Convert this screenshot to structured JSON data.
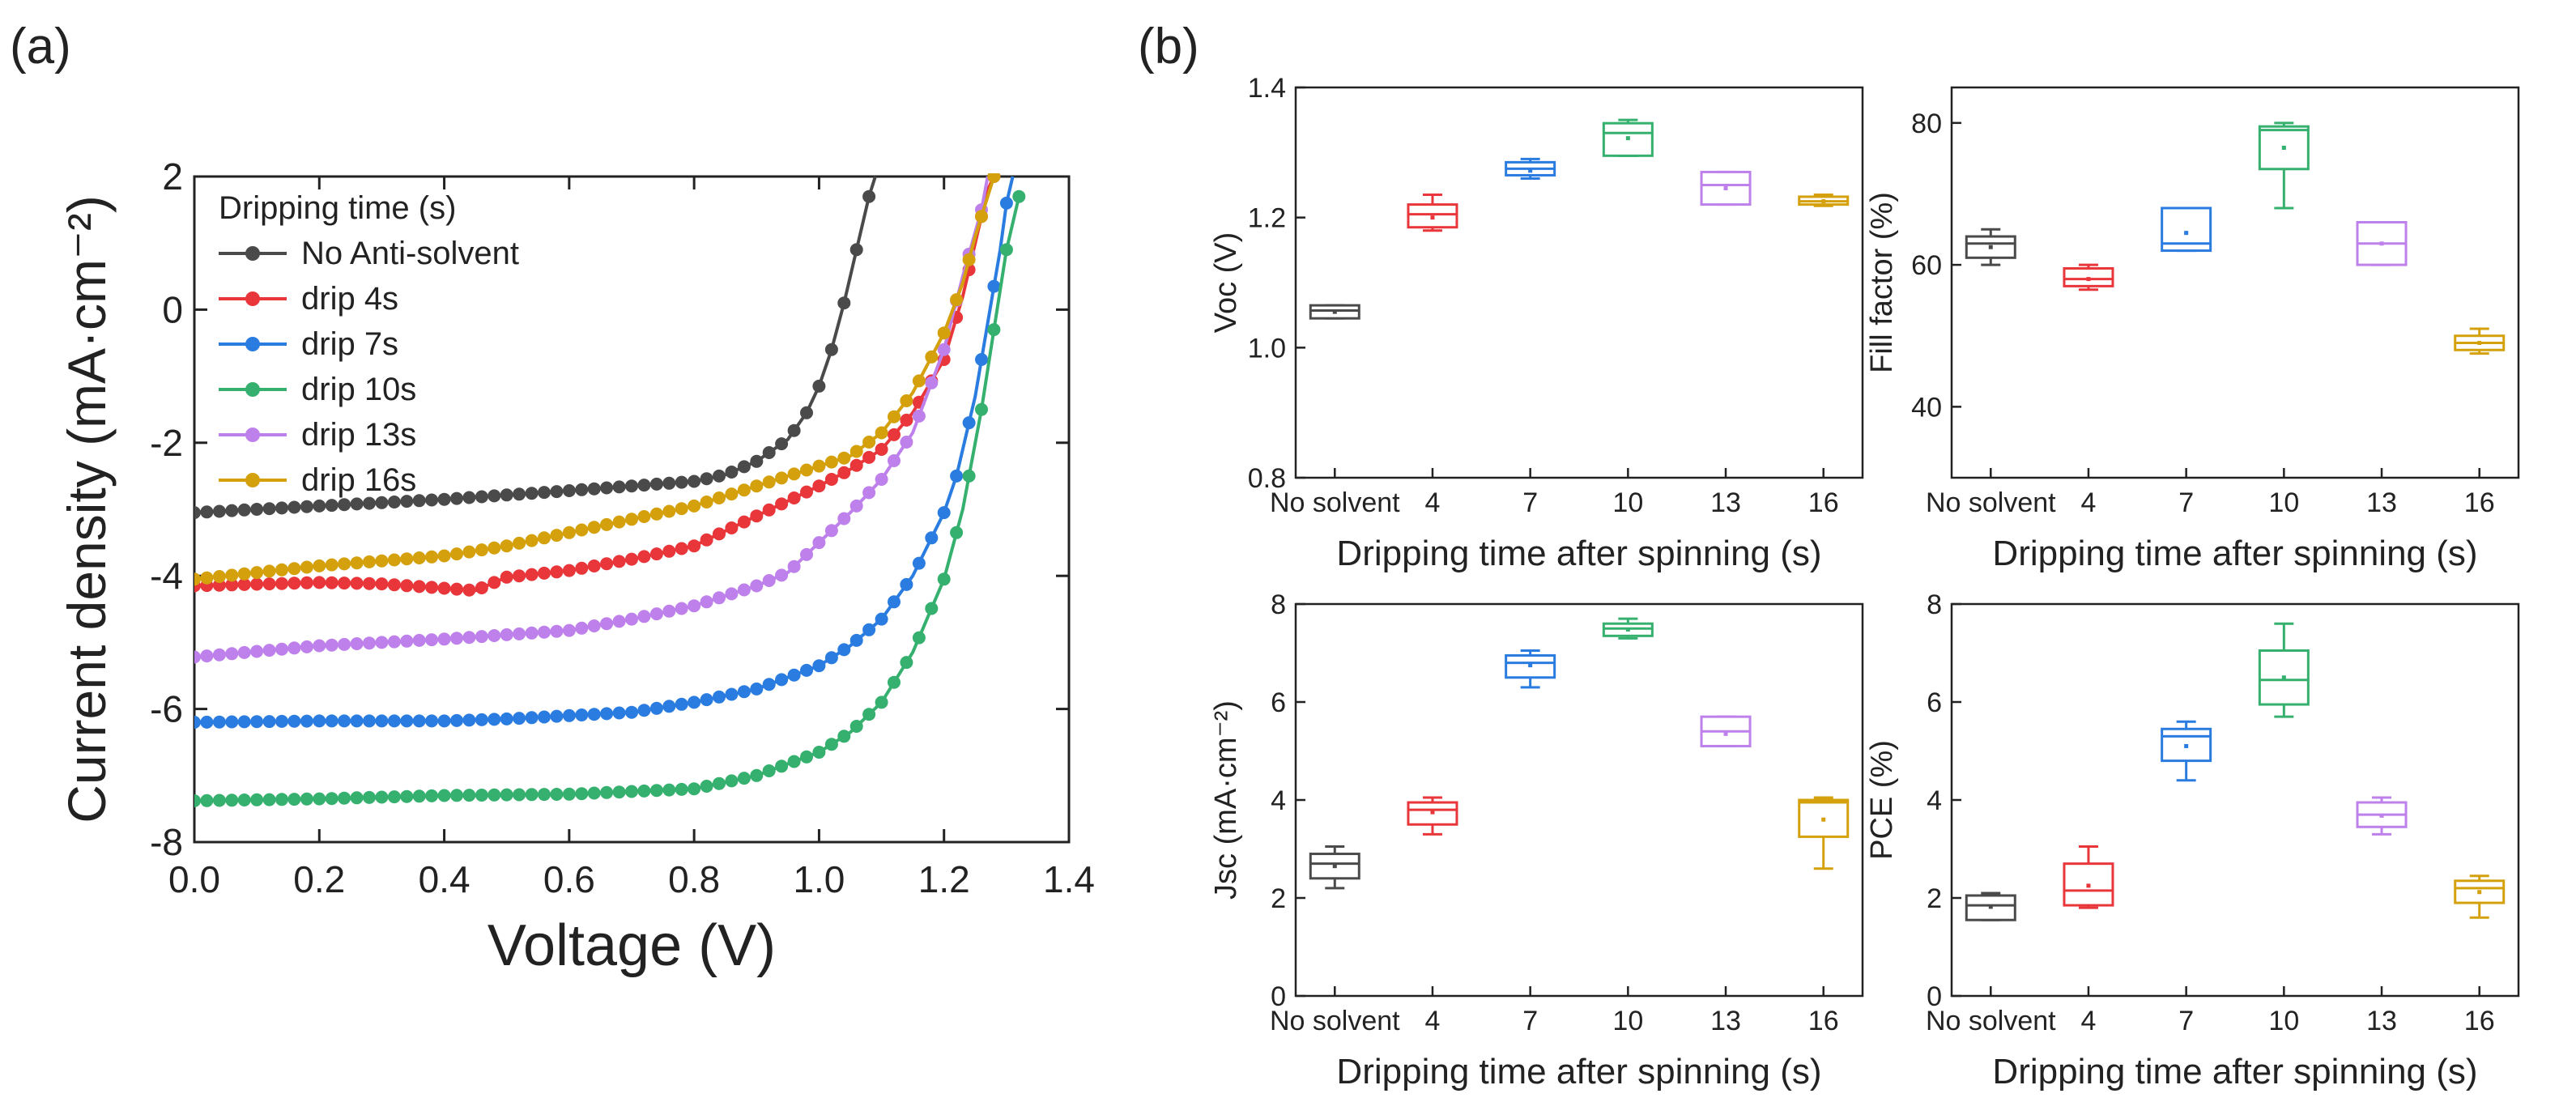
{
  "panel_labels": [
    "(a)",
    "(b)"
  ],
  "colors": {
    "black": "#4a4a4a",
    "red": "#e8363a",
    "blue": "#2a7ce0",
    "green": "#35b06e",
    "purple": "#be80ea",
    "gold": "#d4a00c"
  },
  "chart_data": [
    {
      "id": "jv",
      "type": "line",
      "panel": "(a)",
      "title": "",
      "xlabel": "Voltage (V)",
      "ylabel": "Current density (mA·cm⁻²)",
      "xlim": [
        0.0,
        1.4
      ],
      "ylim": [
        -8,
        2
      ],
      "xticks": [
        0.0,
        0.2,
        0.4,
        0.6,
        0.8,
        1.0,
        1.2,
        1.4
      ],
      "xtick_labels": [
        "0.0",
        "0.2",
        "0.4",
        "0.6",
        "0.8",
        "1.0",
        "1.2",
        "1.4"
      ],
      "yticks": [
        -8,
        -6,
        -4,
        -2,
        0,
        2
      ],
      "ytick_labels": [
        "-8",
        "-6",
        "-4",
        "-2",
        "0",
        "2"
      ],
      "legend_title": "Dripping time (s)",
      "legend_position": "top-left",
      "series": [
        {
          "name": "No Anti-solvent",
          "color": "black",
          "points": [
            [
              0.0,
              -3.05
            ],
            [
              0.2,
              -2.95
            ],
            [
              0.4,
              -2.85
            ],
            [
              0.6,
              -2.72
            ],
            [
              0.8,
              -2.58
            ],
            [
              0.85,
              -2.48
            ],
            [
              0.9,
              -2.28
            ],
            [
              0.95,
              -1.95
            ],
            [
              0.98,
              -1.55
            ],
            [
              1.0,
              -1.15
            ],
            [
              1.02,
              -0.6
            ],
            [
              1.04,
              0.1
            ],
            [
              1.06,
              0.9
            ],
            [
              1.08,
              1.7
            ],
            [
              1.09,
              2.0
            ]
          ]
        },
        {
          "name": "drip 4s",
          "color": "red",
          "points": [
            [
              0.0,
              -4.15
            ],
            [
              0.2,
              -4.1
            ],
            [
              0.3,
              -4.12
            ],
            [
              0.45,
              -4.22
            ],
            [
              0.5,
              -4.02
            ],
            [
              0.6,
              -3.92
            ],
            [
              0.7,
              -3.75
            ],
            [
              0.8,
              -3.55
            ],
            [
              0.9,
              -3.1
            ],
            [
              1.0,
              -2.65
            ],
            [
              1.05,
              -2.4
            ],
            [
              1.1,
              -2.1
            ],
            [
              1.15,
              -1.55
            ],
            [
              1.2,
              -0.75
            ],
            [
              1.23,
              0.2
            ],
            [
              1.25,
              1.0
            ],
            [
              1.27,
              1.8
            ],
            [
              1.28,
              2.0
            ]
          ]
        },
        {
          "name": "drip 7s",
          "color": "blue",
          "points": [
            [
              0.0,
              -6.2
            ],
            [
              0.2,
              -6.18
            ],
            [
              0.4,
              -6.18
            ],
            [
              0.5,
              -6.15
            ],
            [
              0.6,
              -6.1
            ],
            [
              0.7,
              -6.05
            ],
            [
              0.8,
              -5.9
            ],
            [
              0.9,
              -5.7
            ],
            [
              1.0,
              -5.35
            ],
            [
              1.05,
              -5.05
            ],
            [
              1.1,
              -4.65
            ],
            [
              1.15,
              -4.0
            ],
            [
              1.2,
              -3.05
            ],
            [
              1.22,
              -2.5
            ],
            [
              1.25,
              -1.3
            ],
            [
              1.27,
              -0.2
            ],
            [
              1.29,
              0.9
            ],
            [
              1.3,
              1.6
            ],
            [
              1.31,
              2.0
            ]
          ]
        },
        {
          "name": "drip 10s",
          "color": "green",
          "points": [
            [
              0.0,
              -7.38
            ],
            [
              0.2,
              -7.35
            ],
            [
              0.4,
              -7.3
            ],
            [
              0.6,
              -7.28
            ],
            [
              0.8,
              -7.2
            ],
            [
              0.9,
              -7.0
            ],
            [
              1.0,
              -6.65
            ],
            [
              1.05,
              -6.35
            ],
            [
              1.1,
              -5.9
            ],
            [
              1.15,
              -5.15
            ],
            [
              1.2,
              -4.05
            ],
            [
              1.23,
              -3.0
            ],
            [
              1.26,
              -1.5
            ],
            [
              1.28,
              -0.3
            ],
            [
              1.3,
              0.9
            ],
            [
              1.32,
              1.7
            ]
          ]
        },
        {
          "name": "drip 13s",
          "color": "purple",
          "points": [
            [
              0.0,
              -5.22
            ],
            [
              0.2,
              -5.05
            ],
            [
              0.4,
              -4.95
            ],
            [
              0.6,
              -4.82
            ],
            [
              0.7,
              -4.65
            ],
            [
              0.8,
              -4.45
            ],
            [
              0.9,
              -4.15
            ],
            [
              0.95,
              -3.95
            ],
            [
              1.0,
              -3.5
            ],
            [
              1.05,
              -3.05
            ],
            [
              1.1,
              -2.55
            ],
            [
              1.15,
              -1.85
            ],
            [
              1.2,
              -0.6
            ],
            [
              1.23,
              0.5
            ],
            [
              1.26,
              1.5
            ],
            [
              1.27,
              2.0
            ]
          ]
        },
        {
          "name": "drip 16s",
          "color": "gold",
          "points": [
            [
              0.0,
              -4.05
            ],
            [
              0.2,
              -3.85
            ],
            [
              0.4,
              -3.7
            ],
            [
              0.5,
              -3.55
            ],
            [
              0.6,
              -3.35
            ],
            [
              0.7,
              -3.15
            ],
            [
              0.8,
              -2.95
            ],
            [
              0.9,
              -2.65
            ],
            [
              1.0,
              -2.35
            ],
            [
              1.05,
              -2.2
            ],
            [
              1.1,
              -1.85
            ],
            [
              1.15,
              -1.25
            ],
            [
              1.2,
              -0.35
            ],
            [
              1.23,
              0.4
            ],
            [
              1.25,
              1.1
            ],
            [
              1.28,
              2.0
            ]
          ]
        }
      ]
    },
    {
      "id": "voc",
      "type": "box",
      "panel": "(b)",
      "xlabel": "Dripping time after spinning (s)",
      "ylabel": "Voc (V)",
      "categories": [
        "No solvent",
        "4",
        "7",
        "10",
        "13",
        "16"
      ],
      "ylim": [
        0.8,
        1.4
      ],
      "yticks": [
        0.8,
        1.0,
        1.2,
        1.4
      ],
      "ytick_labels": [
        "0.8",
        "1.0",
        "1.2",
        "1.4"
      ],
      "boxes": [
        {
          "q1": 1.045,
          "median": 1.057,
          "q3": 1.065,
          "min": 1.045,
          "max": 1.065,
          "mean": 1.055,
          "color": "black"
        },
        {
          "q1": 1.185,
          "median": 1.205,
          "q3": 1.22,
          "min": 1.18,
          "max": 1.235,
          "mean": 1.2,
          "color": "red"
        },
        {
          "q1": 1.265,
          "median": 1.275,
          "q3": 1.285,
          "min": 1.26,
          "max": 1.29,
          "mean": 1.272,
          "color": "blue"
        },
        {
          "q1": 1.295,
          "median": 1.33,
          "q3": 1.345,
          "min": 1.295,
          "max": 1.35,
          "mean": 1.322,
          "color": "green"
        },
        {
          "q1": 1.22,
          "median": 1.25,
          "q3": 1.27,
          "min": 1.22,
          "max": 1.27,
          "mean": 1.245,
          "color": "purple"
        },
        {
          "q1": 1.22,
          "median": 1.225,
          "q3": 1.232,
          "min": 1.218,
          "max": 1.235,
          "mean": 1.225,
          "color": "gold"
        }
      ]
    },
    {
      "id": "ff",
      "type": "box",
      "panel": "(b)",
      "xlabel": "Dripping time after spinning (s)",
      "ylabel": "Fill factor (%)",
      "categories": [
        "No solvent",
        "4",
        "7",
        "10",
        "13",
        "16"
      ],
      "ylim": [
        30,
        85
      ],
      "yticks": [
        40,
        60,
        80
      ],
      "ytick_labels": [
        "40",
        "60",
        "80"
      ],
      "boxes": [
        {
          "q1": 61.0,
          "median": 63.0,
          "q3": 64.0,
          "min": 60.0,
          "max": 65.0,
          "mean": 62.5,
          "color": "black"
        },
        {
          "q1": 57.0,
          "median": 58.0,
          "q3": 59.5,
          "min": 56.5,
          "max": 60.0,
          "mean": 58.0,
          "color": "red"
        },
        {
          "q1": 62.0,
          "median": 63.0,
          "q3": 68.0,
          "min": 62.0,
          "max": 68.0,
          "mean": 64.5,
          "color": "blue"
        },
        {
          "q1": 73.5,
          "median": 79.0,
          "q3": 79.5,
          "min": 68.0,
          "max": 80.0,
          "mean": 76.5,
          "color": "green"
        },
        {
          "q1": 60.0,
          "median": 63.0,
          "q3": 66.0,
          "min": 60.0,
          "max": 66.0,
          "mean": 63.0,
          "color": "purple"
        },
        {
          "q1": 48.0,
          "median": 49.0,
          "q3": 50.0,
          "min": 47.5,
          "max": 51.0,
          "mean": 49.0,
          "color": "gold"
        }
      ]
    },
    {
      "id": "jsc",
      "type": "box",
      "panel": "(b)",
      "xlabel": "Dripping time after spinning (s)",
      "ylabel": "Jsc (mA·cm⁻²)",
      "categories": [
        "No solvent",
        "4",
        "7",
        "10",
        "13",
        "16"
      ],
      "ylim": [
        0,
        8
      ],
      "yticks": [
        0,
        2,
        4,
        6,
        8
      ],
      "ytick_labels": [
        "0",
        "2",
        "4",
        "6",
        "8"
      ],
      "boxes": [
        {
          "q1": 2.4,
          "median": 2.7,
          "q3": 2.9,
          "min": 2.2,
          "max": 3.05,
          "mean": 2.65,
          "color": "black"
        },
        {
          "q1": 3.5,
          "median": 3.8,
          "q3": 3.95,
          "min": 3.3,
          "max": 4.05,
          "mean": 3.75,
          "color": "red"
        },
        {
          "q1": 6.5,
          "median": 6.8,
          "q3": 6.95,
          "min": 6.3,
          "max": 7.05,
          "mean": 6.75,
          "color": "blue"
        },
        {
          "q1": 7.35,
          "median": 7.5,
          "q3": 7.6,
          "min": 7.3,
          "max": 7.7,
          "mean": 7.48,
          "color": "green"
        },
        {
          "q1": 5.1,
          "median": 5.4,
          "q3": 5.7,
          "min": 5.1,
          "max": 5.7,
          "mean": 5.35,
          "color": "purple"
        },
        {
          "q1": 3.25,
          "median": 3.95,
          "q3": 4.0,
          "min": 2.6,
          "max": 4.05,
          "mean": 3.6,
          "color": "gold"
        }
      ]
    },
    {
      "id": "pce",
      "type": "box",
      "panel": "(b)",
      "xlabel": "Dripping time after spinning (s)",
      "ylabel": "PCE (%)",
      "categories": [
        "No solvent",
        "4",
        "7",
        "10",
        "13",
        "16"
      ],
      "ylim": [
        0,
        8
      ],
      "yticks": [
        0,
        2,
        4,
        6,
        8
      ],
      "ytick_labels": [
        "0",
        "2",
        "4",
        "6",
        "8"
      ],
      "boxes": [
        {
          "q1": 1.55,
          "median": 1.85,
          "q3": 2.05,
          "min": 1.55,
          "max": 2.1,
          "mean": 1.82,
          "color": "black"
        },
        {
          "q1": 1.85,
          "median": 2.15,
          "q3": 2.7,
          "min": 1.8,
          "max": 3.05,
          "mean": 2.25,
          "color": "red"
        },
        {
          "q1": 4.8,
          "median": 5.3,
          "q3": 5.45,
          "min": 4.4,
          "max": 5.6,
          "mean": 5.1,
          "color": "blue"
        },
        {
          "q1": 5.95,
          "median": 6.45,
          "q3": 7.05,
          "min": 5.7,
          "max": 7.6,
          "mean": 6.5,
          "color": "green"
        },
        {
          "q1": 3.45,
          "median": 3.7,
          "q3": 3.95,
          "min": 3.3,
          "max": 4.05,
          "mean": 3.68,
          "color": "purple"
        },
        {
          "q1": 1.9,
          "median": 2.2,
          "q3": 2.35,
          "min": 1.6,
          "max": 2.45,
          "mean": 2.12,
          "color": "gold"
        }
      ]
    }
  ]
}
